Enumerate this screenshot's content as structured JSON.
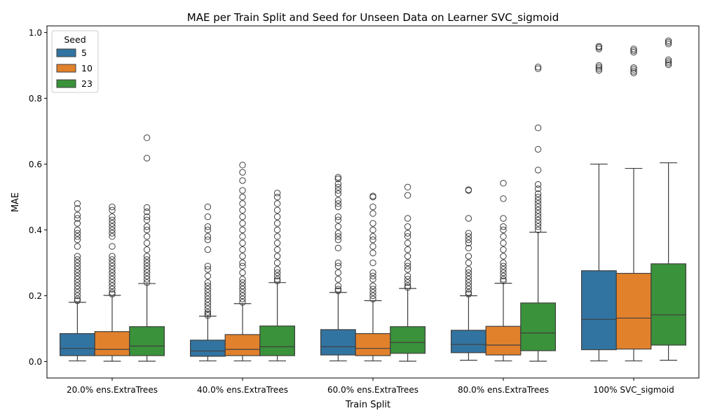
{
  "chart_data": {
    "type": "box",
    "title": "MAE per Train Split and Seed for Unseen Data on Learner SVC_sigmoid",
    "xlabel": "Train Split",
    "ylabel": "MAE",
    "ylim": [
      -0.05,
      1.02
    ],
    "yticks": [
      "0.0",
      "0.2",
      "0.4",
      "0.6",
      "0.8",
      "1.0"
    ],
    "categories": [
      "20.0% ens.ExtraTrees",
      "40.0% ens.ExtraTrees",
      "60.0% ens.ExtraTrees",
      "80.0% ens.ExtraTrees",
      "100% SVC_sigmoid"
    ],
    "legend": {
      "title": "Seed",
      "position": "top-left"
    },
    "colors": [
      "#3274a1",
      "#e1812c",
      "#3a923a"
    ],
    "series": [
      {
        "name": "5",
        "boxes": [
          {
            "min": 0.002,
            "q1": 0.018,
            "median": 0.04,
            "q3": 0.085,
            "max": 0.18,
            "outliers": [
              0.185,
              0.19,
              0.2,
              0.21,
              0.22,
              0.23,
              0.24,
              0.25,
              0.26,
              0.27,
              0.28,
              0.29,
              0.3,
              0.31,
              0.32,
              0.35,
              0.37,
              0.38,
              0.39,
              0.4,
              0.42,
              0.435,
              0.445,
              0.465,
              0.48
            ]
          },
          {
            "min": 0.002,
            "q1": 0.016,
            "median": 0.032,
            "q3": 0.065,
            "max": 0.138,
            "outliers": [
              0.14,
              0.145,
              0.15,
              0.16,
              0.17,
              0.18,
              0.19,
              0.2,
              0.21,
              0.22,
              0.23,
              0.24,
              0.26,
              0.28,
              0.29,
              0.34,
              0.37,
              0.38,
              0.4,
              0.41,
              0.44,
              0.47
            ]
          },
          {
            "min": 0.002,
            "q1": 0.02,
            "median": 0.045,
            "q3": 0.097,
            "max": 0.21,
            "outliers": [
              0.215,
              0.22,
              0.23,
              0.25,
              0.27,
              0.29,
              0.3,
              0.345,
              0.37,
              0.38,
              0.39,
              0.41,
              0.43,
              0.44,
              0.47,
              0.48,
              0.49,
              0.51,
              0.52,
              0.53,
              0.54,
              0.555,
              0.56
            ]
          },
          {
            "min": 0.004,
            "q1": 0.027,
            "median": 0.052,
            "q3": 0.095,
            "max": 0.2,
            "outliers": [
              0.205,
              0.21,
              0.22,
              0.23,
              0.24,
              0.25,
              0.26,
              0.27,
              0.28,
              0.3,
              0.32,
              0.345,
              0.36,
              0.37,
              0.38,
              0.39,
              0.435,
              0.52,
              0.522
            ]
          },
          {
            "min": 0.002,
            "q1": 0.036,
            "median": 0.128,
            "q3": 0.276,
            "max": 0.6,
            "outliers": [
              0.885,
              0.89,
              0.895,
              0.9,
              0.95,
              0.955,
              0.958
            ]
          }
        ]
      },
      {
        "name": "10",
        "boxes": [
          {
            "min": 0.001,
            "q1": 0.018,
            "median": 0.037,
            "q3": 0.091,
            "max": 0.201,
            "outliers": [
              0.205,
              0.21,
              0.22,
              0.23,
              0.24,
              0.25,
              0.26,
              0.27,
              0.28,
              0.29,
              0.3,
              0.31,
              0.32,
              0.35,
              0.38,
              0.39,
              0.4,
              0.41,
              0.42,
              0.43,
              0.44,
              0.46,
              0.47
            ]
          },
          {
            "min": 0.002,
            "q1": 0.018,
            "median": 0.037,
            "q3": 0.082,
            "max": 0.176,
            "outliers": [
              0.18,
              0.19,
              0.2,
              0.21,
              0.22,
              0.23,
              0.24,
              0.25,
              0.27,
              0.29,
              0.3,
              0.32,
              0.34,
              0.36,
              0.38,
              0.4,
              0.42,
              0.44,
              0.46,
              0.48,
              0.5,
              0.52,
              0.55,
              0.575,
              0.597
            ]
          },
          {
            "min": 0.002,
            "q1": 0.018,
            "median": 0.04,
            "q3": 0.085,
            "max": 0.185,
            "outliers": [
              0.19,
              0.2,
              0.21,
              0.22,
              0.23,
              0.25,
              0.26,
              0.27,
              0.3,
              0.33,
              0.35,
              0.37,
              0.38,
              0.4,
              0.42,
              0.45,
              0.47,
              0.5,
              0.503
            ]
          },
          {
            "min": 0.002,
            "q1": 0.02,
            "median": 0.05,
            "q3": 0.107,
            "max": 0.238,
            "outliers": [
              0.245,
              0.25,
              0.26,
              0.27,
              0.28,
              0.29,
              0.3,
              0.32,
              0.34,
              0.36,
              0.38,
              0.4,
              0.41,
              0.435,
              0.495,
              0.542
            ]
          },
          {
            "min": 0.002,
            "q1": 0.038,
            "median": 0.132,
            "q3": 0.268,
            "max": 0.587,
            "outliers": [
              0.877,
              0.882,
              0.888,
              0.893,
              0.94,
              0.945,
              0.95
            ]
          }
        ]
      },
      {
        "name": "23",
        "boxes": [
          {
            "min": 0.001,
            "q1": 0.018,
            "median": 0.047,
            "q3": 0.106,
            "max": 0.237,
            "outliers": [
              0.24,
              0.25,
              0.26,
              0.27,
              0.28,
              0.29,
              0.3,
              0.31,
              0.32,
              0.34,
              0.36,
              0.38,
              0.4,
              0.41,
              0.43,
              0.44,
              0.455,
              0.468,
              0.618,
              0.68
            ]
          },
          {
            "min": 0.002,
            "q1": 0.018,
            "median": 0.045,
            "q3": 0.108,
            "max": 0.24,
            "outliers": [
              0.245,
              0.25,
              0.26,
              0.27,
              0.28,
              0.3,
              0.32,
              0.34,
              0.36,
              0.38,
              0.4,
              0.42,
              0.44,
              0.46,
              0.48,
              0.5,
              0.512
            ]
          },
          {
            "min": 0.001,
            "q1": 0.025,
            "median": 0.058,
            "q3": 0.106,
            "max": 0.222,
            "outliers": [
              0.225,
              0.23,
              0.24,
              0.25,
              0.26,
              0.28,
              0.29,
              0.3,
              0.32,
              0.34,
              0.36,
              0.38,
              0.39,
              0.41,
              0.435,
              0.505,
              0.53
            ]
          },
          {
            "min": 0.001,
            "q1": 0.033,
            "median": 0.087,
            "q3": 0.178,
            "max": 0.393,
            "outliers": [
              0.4,
              0.41,
              0.42,
              0.43,
              0.44,
              0.45,
              0.46,
              0.47,
              0.48,
              0.49,
              0.5,
              0.51,
              0.525,
              0.538,
              0.582,
              0.645,
              0.71,
              0.89,
              0.895
            ]
          },
          {
            "min": 0.004,
            "q1": 0.05,
            "median": 0.142,
            "q3": 0.297,
            "max": 0.604,
            "outliers": [
              0.902,
              0.907,
              0.912,
              0.917,
              0.965,
              0.97,
              0.975
            ]
          }
        ]
      }
    ]
  }
}
